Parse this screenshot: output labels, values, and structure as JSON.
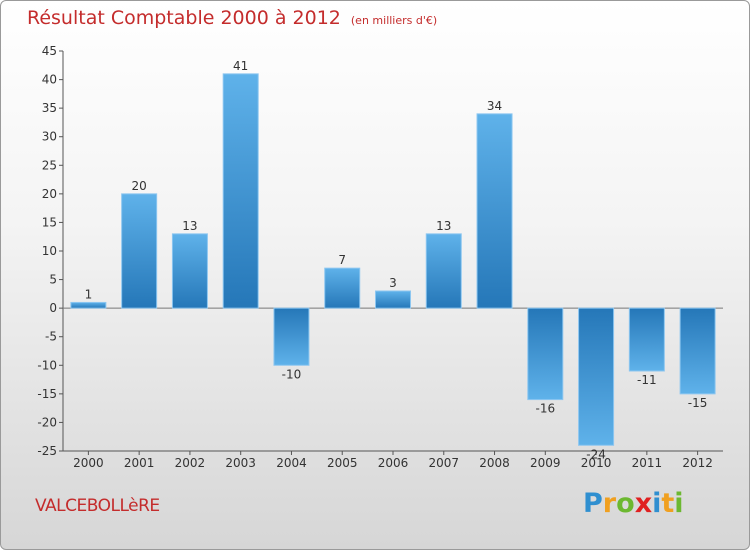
{
  "header": {
    "title": "Résultat Comptable 2000 à 2012",
    "subtitle": "(en milliers d'€)"
  },
  "footer": {
    "place": "VALCEBOLLèRE",
    "logo_letters": [
      "P",
      "r",
      "o",
      "x",
      "i",
      "t",
      "i"
    ],
    "logo_colors": [
      "#2f8fd0",
      "#f0a020",
      "#6cb830",
      "#e02020",
      "#2f8fd0",
      "#f0a020",
      "#6cb830"
    ]
  },
  "colors": {
    "title": "#c42c2c",
    "bar_light": "#5aaee8",
    "bar_dark": "#2577b8"
  },
  "chart_data": {
    "type": "bar",
    "title": "Résultat Comptable 2000 à 2012",
    "xlabel": "",
    "ylabel": "",
    "categories": [
      "2000",
      "2001",
      "2002",
      "2003",
      "2004",
      "2005",
      "2006",
      "2007",
      "2008",
      "2009",
      "2010",
      "2011",
      "2012"
    ],
    "values": [
      1,
      20,
      13,
      41,
      -10,
      7,
      3,
      13,
      34,
      -16,
      -24,
      -11,
      -15
    ],
    "labels": [
      "1",
      "20",
      "13",
      "41",
      "-10",
      "7",
      "3",
      "13",
      "34",
      "-16",
      "-24",
      "-11",
      "-15"
    ],
    "ylim": [
      -25,
      45
    ],
    "yticks": [
      -25,
      -20,
      -15,
      -10,
      -5,
      0,
      5,
      10,
      15,
      20,
      25,
      30,
      35,
      40,
      45
    ],
    "ytick_labels": [
      "-25",
      "-20",
      "-15",
      "-10",
      "-5",
      "0",
      "5",
      "10",
      "15",
      "20",
      "25",
      "30",
      "35",
      "40",
      "45"
    ],
    "grid": false
  }
}
